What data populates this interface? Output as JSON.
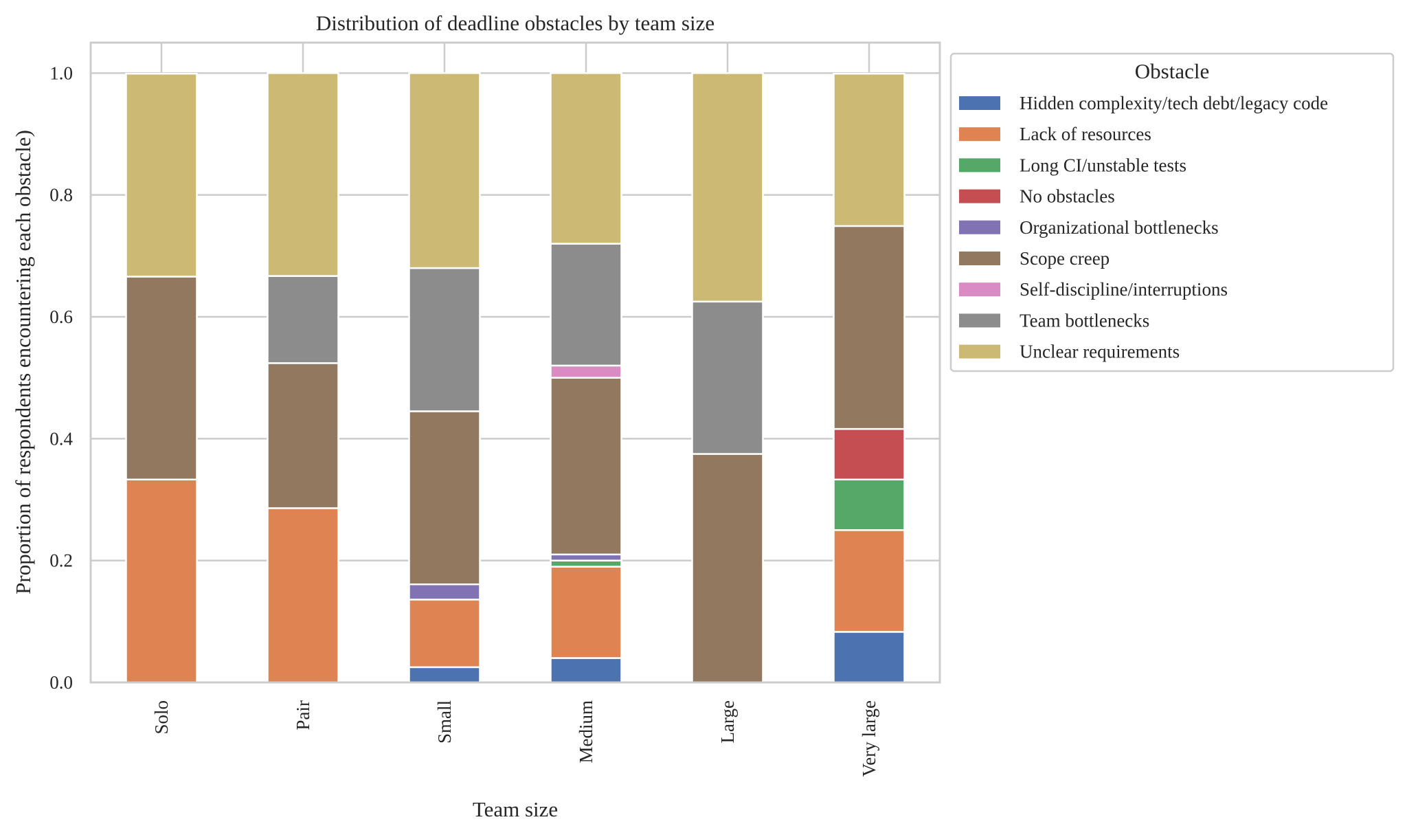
{
  "chart_data": {
    "type": "bar",
    "stacked": true,
    "title": "Distribution of deadline obstacles by team size",
    "xlabel": "Team size",
    "ylabel": "Proportion of respondents encountering each obstacle)",
    "ylim": [
      0,
      1.05
    ],
    "yticks": [
      0.0,
      0.2,
      0.4,
      0.6,
      0.8,
      1.0
    ],
    "ytick_labels": [
      "0.0",
      "0.2",
      "0.4",
      "0.6",
      "0.8",
      "1.0"
    ],
    "grid": true,
    "legend_title": "Obstacle",
    "legend_placement": "outside-upper-right",
    "categories": [
      "Solo",
      "Pair",
      "Small",
      "Medium",
      "Large",
      "Very large"
    ],
    "series": [
      {
        "name": "Hidden complexity/tech debt/legacy code",
        "color": "#4c72b0",
        "values": [
          0,
          0,
          0.025,
          0.04,
          0,
          0.083
        ]
      },
      {
        "name": "Lack of resources",
        "color": "#dd8452",
        "values": [
          0.333,
          0.286,
          0.111,
          0.15,
          0,
          0.167
        ]
      },
      {
        "name": "Long CI/unstable tests",
        "color": "#55a868",
        "values": [
          0,
          0,
          0,
          0.01,
          0,
          0.083
        ]
      },
      {
        "name": "No obstacles",
        "color": "#c44e52",
        "values": [
          0,
          0,
          0,
          0,
          0,
          0.083
        ]
      },
      {
        "name": "Organizational bottlenecks",
        "color": "#8172b3",
        "values": [
          0,
          0,
          0.025,
          0.01,
          0,
          0
        ]
      },
      {
        "name": "Scope creep",
        "color": "#937860",
        "values": [
          0.333,
          0.238,
          0.284,
          0.29,
          0.375,
          0.333
        ]
      },
      {
        "name": "Self-discipline/interruptions",
        "color": "#da8bc3",
        "values": [
          0,
          0,
          0,
          0.02,
          0,
          0
        ]
      },
      {
        "name": "Team bottlenecks",
        "color": "#8c8c8c",
        "values": [
          0,
          0.143,
          0.235,
          0.2,
          0.25,
          0
        ]
      },
      {
        "name": "Unclear requirements",
        "color": "#ccb974",
        "values": [
          0.333,
          0.333,
          0.32,
          0.28,
          0.375,
          0.25
        ]
      }
    ]
  }
}
